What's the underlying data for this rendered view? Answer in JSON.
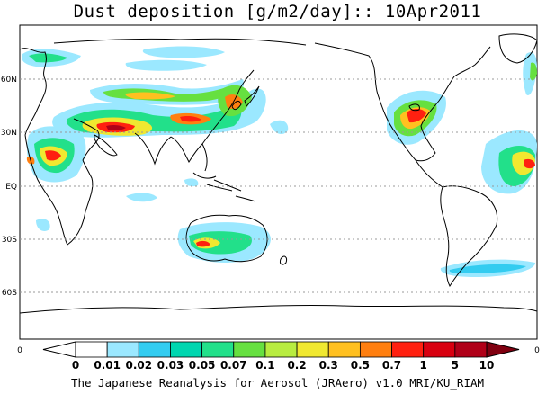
{
  "title": "Dust deposition [g/m2/day]:: 10Apr2011",
  "latitude_labels": [
    "60N",
    "30N",
    "EQ",
    "30S",
    "60S"
  ],
  "colorbar": {
    "labels": [
      "0",
      "0.01",
      "0.02",
      "0.03",
      "0.05",
      "0.07",
      "0.1",
      "0.2",
      "0.3",
      "0.5",
      "0.7",
      "1",
      "5",
      "10"
    ],
    "colors": [
      "#ffffff",
      "#ffffff",
      "#9be8ff",
      "#33ccf0",
      "#00d6b0",
      "#22e08a",
      "#66e040",
      "#b8ec40",
      "#f0e830",
      "#ffc020",
      "#ff7f10",
      "#ff2010",
      "#d80010",
      "#b00018",
      "#800010"
    ],
    "left_end_label": "0",
    "right_end_label": "0"
  },
  "footer": "The Japanese Reanalysis for Aerosol (JRAero) v1.0 MRI/KU_RIAM",
  "dust_regions": [
    {
      "name": "north-africa-arabia-asia-belt",
      "color_range": [
        "#9be8ff",
        "#b00018"
      ]
    },
    {
      "name": "central-east-asia",
      "color_range": [
        "#9be8ff",
        "#ff2010"
      ]
    },
    {
      "name": "australia",
      "color_range": [
        "#9be8ff",
        "#ff2010"
      ]
    },
    {
      "name": "eastern-north-america",
      "color_range": [
        "#9be8ff",
        "#d80010"
      ]
    },
    {
      "name": "south-atlantic-patagonia",
      "color_range": [
        "#9be8ff",
        "#22e08a"
      ]
    }
  ]
}
